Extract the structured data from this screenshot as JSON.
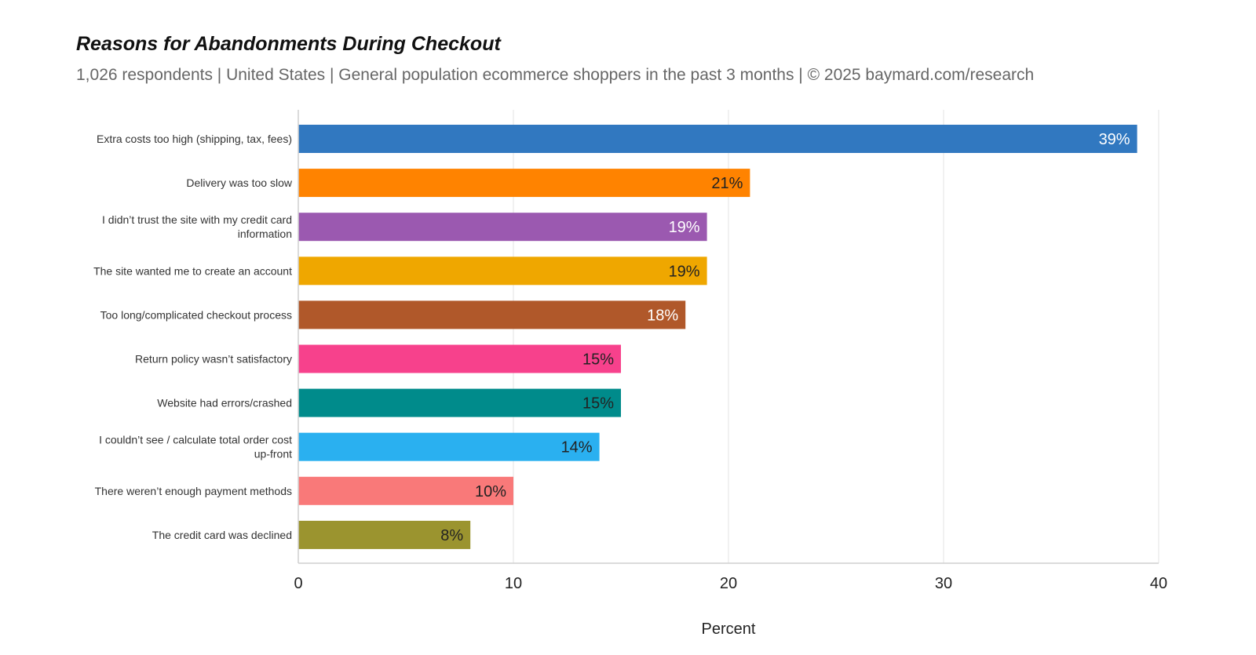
{
  "chart_data": {
    "type": "bar",
    "orientation": "horizontal",
    "title": "Reasons for Abandonments During Checkout",
    "subtitle": "1,026 respondents  |  United States  |  General population ecommerce shoppers in the past 3 months | © 2025 baymard.com/research",
    "xlabel": "Percent",
    "ylabel": "",
    "xlim": [
      0,
      40
    ],
    "xticks": [
      "0",
      "10",
      "20",
      "30",
      "40"
    ],
    "grid": true,
    "legend": "none",
    "categories": [
      [
        "Extra costs too high (shipping, tax, fees)"
      ],
      [
        "Delivery was too slow"
      ],
      [
        "I didn’t trust the site with my credit card",
        "information"
      ],
      [
        "The site wanted me to create an account"
      ],
      [
        "Too long/complicated checkout process"
      ],
      [
        "Return policy wasn’t satisfactory"
      ],
      [
        "Website had errors/crashed"
      ],
      [
        "I couldn’t see / calculate total order cost",
        "up-front"
      ],
      [
        "There weren’t enough payment methods"
      ],
      [
        "The credit card was declined"
      ]
    ],
    "values": [
      39,
      21,
      19,
      19,
      18,
      15,
      15,
      14,
      10,
      8
    ],
    "data_labels": [
      "39%",
      "21%",
      "19%",
      "19%",
      "18%",
      "15%",
      "15%",
      "14%",
      "10%",
      "8%"
    ],
    "colors": [
      "#3178c0",
      "#ff8300",
      "#9b59b0",
      "#efa700",
      "#b0582a",
      "#f7418c",
      "#008b8b",
      "#2ab0f0",
      "#f97979",
      "#9b942f"
    ],
    "label_colors": [
      "#ffffff",
      "#222222",
      "#ffffff",
      "#222222",
      "#ffffff",
      "#222222",
      "#222222",
      "#222222",
      "#222222",
      "#222222"
    ]
  }
}
